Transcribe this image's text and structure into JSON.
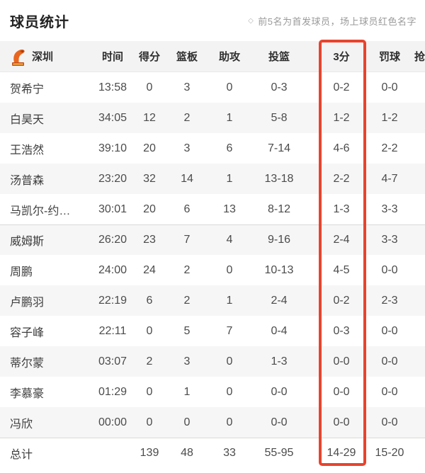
{
  "header": {
    "title": "球员统计",
    "note_bullet": "◇",
    "note": "前5名为首发球员，场上球员红色名字"
  },
  "table": {
    "team": "深圳",
    "team_logo_icon": "shenzhen-leopards-logo",
    "columns": [
      "时间",
      "得分",
      "篮板",
      "助攻",
      "投篮",
      "3分",
      "罚球",
      "抢断"
    ],
    "highlighted_column": "3分",
    "rows": [
      {
        "name": "贺希宁",
        "time": "13:58",
        "pts": "0",
        "reb": "3",
        "ast": "0",
        "fg": "0-3",
        "tp": "0-2",
        "ft": "0-0"
      },
      {
        "name": "白昊天",
        "time": "34:05",
        "pts": "12",
        "reb": "2",
        "ast": "1",
        "fg": "5-8",
        "tp": "1-2",
        "ft": "1-2"
      },
      {
        "name": "王浩然",
        "time": "39:10",
        "pts": "20",
        "reb": "3",
        "ast": "6",
        "fg": "7-14",
        "tp": "4-6",
        "ft": "2-2"
      },
      {
        "name": "汤普森",
        "time": "23:20",
        "pts": "32",
        "reb": "14",
        "ast": "1",
        "fg": "13-18",
        "tp": "2-2",
        "ft": "4-7"
      },
      {
        "name": "马凯尔-约…",
        "time": "30:01",
        "pts": "20",
        "reb": "6",
        "ast": "13",
        "fg": "8-12",
        "tp": "1-3",
        "ft": "3-3"
      },
      {
        "name": "威姆斯",
        "time": "26:20",
        "pts": "23",
        "reb": "7",
        "ast": "4",
        "fg": "9-16",
        "tp": "2-4",
        "ft": "3-3"
      },
      {
        "name": "周鹏",
        "time": "24:00",
        "pts": "24",
        "reb": "2",
        "ast": "0",
        "fg": "10-13",
        "tp": "4-5",
        "ft": "0-0"
      },
      {
        "name": "卢鹏羽",
        "time": "22:19",
        "pts": "6",
        "reb": "2",
        "ast": "1",
        "fg": "2-4",
        "tp": "0-2",
        "ft": "2-3"
      },
      {
        "name": "容子峰",
        "time": "22:11",
        "pts": "0",
        "reb": "5",
        "ast": "7",
        "fg": "0-4",
        "tp": "0-3",
        "ft": "0-0"
      },
      {
        "name": "蒂尔蒙",
        "time": "03:07",
        "pts": "2",
        "reb": "3",
        "ast": "0",
        "fg": "1-3",
        "tp": "0-0",
        "ft": "0-0"
      },
      {
        "name": "李慕豪",
        "time": "01:29",
        "pts": "0",
        "reb": "1",
        "ast": "0",
        "fg": "0-0",
        "tp": "0-0",
        "ft": "0-0"
      },
      {
        "name": "冯欣",
        "time": "00:00",
        "pts": "0",
        "reb": "0",
        "ast": "0",
        "fg": "0-0",
        "tp": "0-0",
        "ft": "0-0"
      }
    ],
    "totals": {
      "name": "总计",
      "time": "",
      "pts": "139",
      "reb": "48",
      "ast": "33",
      "fg": "55-95",
      "tp": "14-29",
      "ft": "15-20"
    },
    "starters_count": 5
  },
  "colors": {
    "highlight_box": "#e8432d",
    "logo_orange": "#e8661f",
    "logo_dark_orange": "#c14e14",
    "header_bg": "#f3f3f4",
    "stripe_bg": "#f6f6f7",
    "note_gray": "#9a9a9a"
  }
}
